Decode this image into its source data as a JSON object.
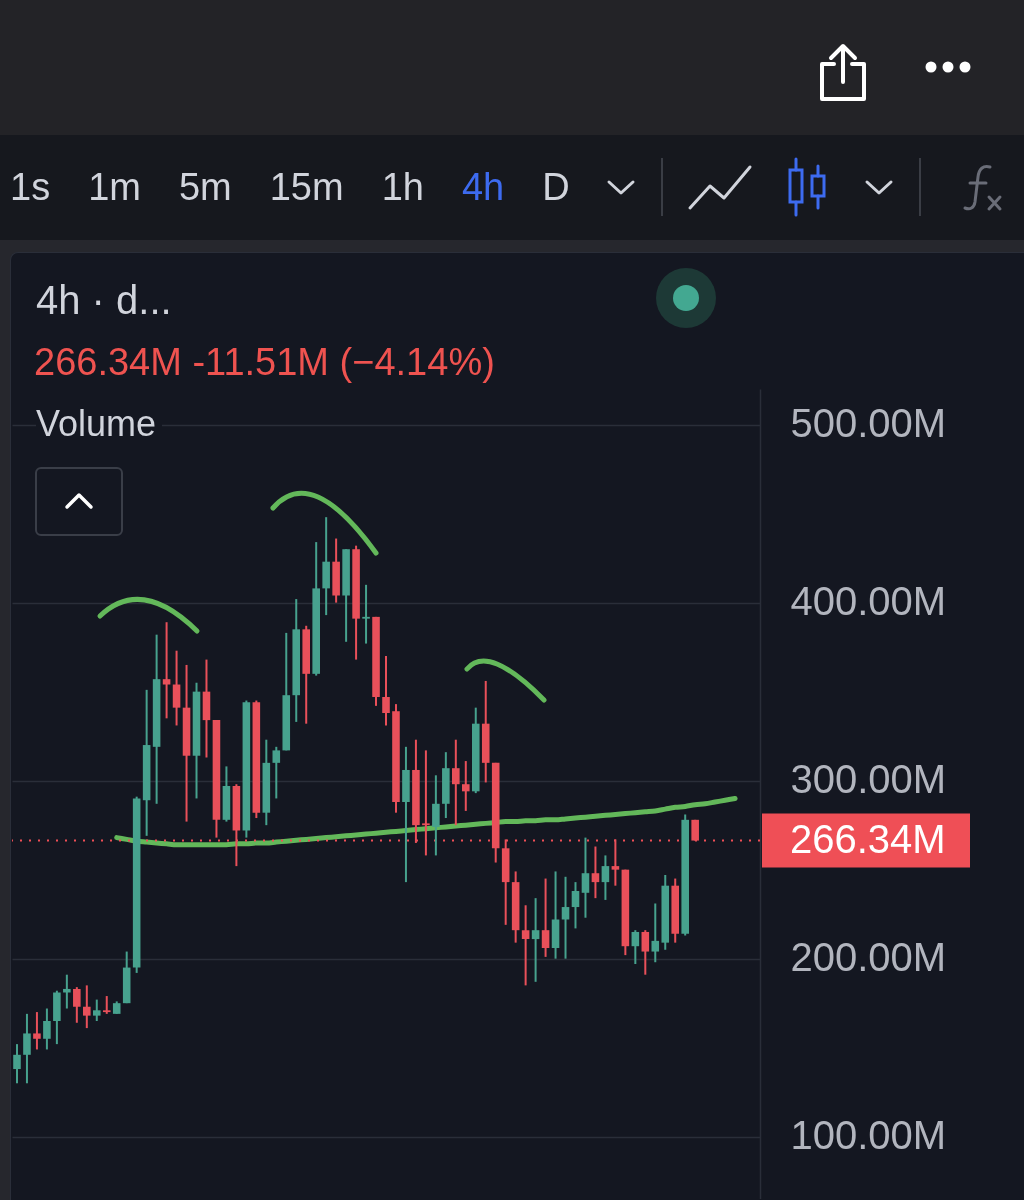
{
  "chart_data": {
    "type": "candlestick",
    "title": "4h · d...",
    "subtitle": "266.34M -11.51M (−4.14%)",
    "annotations": [
      "1s",
      "1m",
      "5m",
      "15m",
      "1h",
      "4h",
      "D",
      "Volume"
    ],
    "categories": [
      null,
      null,
      null,
      null,
      null,
      null,
      null,
      null,
      null,
      null,
      null,
      null,
      null,
      null,
      null,
      null,
      null,
      null,
      null,
      null,
      null,
      null,
      null,
      null,
      null,
      null,
      null,
      null,
      null,
      null,
      null,
      null,
      null,
      null,
      null,
      null,
      null,
      null,
      null,
      null,
      null,
      null,
      null,
      null,
      null,
      null,
      null,
      null,
      null,
      null,
      null,
      null,
      null,
      null,
      null,
      null,
      null,
      null,
      null,
      null,
      null,
      null,
      null,
      null,
      null,
      null,
      null,
      null,
      null,
      null,
      null,
      null,
      null,
      null,
      null
    ],
    "ohlc": [
      [
        138,
        152,
        130,
        146
      ],
      [
        146,
        169,
        130,
        158
      ],
      [
        158,
        170,
        149,
        155
      ],
      [
        155,
        172,
        149,
        165
      ],
      [
        165,
        182,
        152,
        181
      ],
      [
        181,
        191,
        172,
        183
      ],
      [
        183,
        184,
        164,
        173
      ],
      [
        173,
        185,
        161,
        168
      ],
      [
        168,
        177,
        165,
        171
      ],
      [
        171,
        179,
        169,
        170
      ],
      [
        169,
        176,
        169,
        175
      ],
      [
        175,
        204,
        175,
        195
      ],
      [
        195,
        291,
        192,
        290
      ],
      [
        289,
        351,
        269,
        320
      ],
      [
        319,
        382,
        287,
        357
      ],
      [
        357,
        389,
        335,
        354
      ],
      [
        354,
        373,
        331,
        341
      ],
      [
        341,
        365,
        277,
        314
      ],
      [
        314,
        355,
        290,
        350
      ],
      [
        350,
        368,
        313,
        334
      ],
      [
        334,
        334,
        268,
        278
      ],
      [
        278,
        308,
        277,
        297
      ],
      [
        297,
        298,
        252,
        272
      ],
      [
        272,
        345,
        268,
        344
      ],
      [
        344,
        345,
        279,
        282
      ],
      [
        282,
        323,
        275,
        310
      ],
      [
        310,
        319,
        290,
        317
      ],
      [
        317,
        383,
        317,
        348
      ],
      [
        348,
        402,
        333,
        385
      ],
      [
        385,
        387,
        332,
        360
      ],
      [
        360,
        434,
        359,
        408
      ],
      [
        408,
        448,
        393,
        423
      ],
      [
        423,
        436,
        400,
        404
      ],
      [
        404,
        430,
        378,
        430
      ],
      [
        430,
        432,
        368,
        391
      ],
      [
        391,
        410,
        377,
        392
      ],
      [
        392,
        392,
        342,
        347
      ],
      [
        347,
        370,
        331,
        338
      ],
      [
        339,
        343,
        282,
        288
      ],
      [
        288,
        319,
        243,
        306
      ],
      [
        306,
        323,
        265,
        275
      ],
      [
        276,
        317,
        258,
        275
      ],
      [
        274,
        303,
        258,
        287
      ],
      [
        287,
        316,
        279,
        307
      ],
      [
        307,
        323,
        275,
        298
      ],
      [
        298,
        311,
        283,
        294
      ],
      [
        294,
        341,
        293,
        332
      ],
      [
        332,
        356,
        299,
        310
      ],
      [
        310,
        310,
        254,
        262
      ],
      [
        262,
        267,
        219,
        243
      ],
      [
        243,
        249,
        209,
        216
      ],
      [
        216,
        230,
        185,
        211
      ],
      [
        211,
        234,
        187,
        216
      ],
      [
        216,
        245,
        201,
        206
      ],
      [
        206,
        249,
        200,
        222
      ],
      [
        222,
        246,
        200,
        229
      ],
      [
        229,
        243,
        217,
        238
      ],
      [
        237,
        268,
        223,
        248
      ],
      [
        248,
        263,
        234,
        243
      ],
      [
        243,
        258,
        233,
        252
      ],
      [
        252,
        267,
        241,
        250
      ],
      [
        250,
        250,
        202,
        207
      ],
      [
        207,
        216,
        197,
        215
      ],
      [
        215,
        216,
        191,
        204
      ],
      [
        204,
        231,
        198,
        210
      ],
      [
        209,
        247,
        205,
        241
      ],
      [
        241,
        245,
        209,
        214
      ],
      [
        214,
        281,
        213,
        278
      ],
      [
        278,
        278,
        266.34,
        266.34
      ],
      null,
      null,
      null,
      null,
      null,
      null
    ],
    "colors": [
      "#47a28e",
      "#47a28e",
      "#e9505a",
      "#47a28e",
      "#47a28e",
      "#47a28e",
      "#e9505a",
      "#e9505a",
      "#47a28e",
      "#e9505a",
      "#47a28e",
      "#47a28e",
      "#47a28e",
      "#47a28e",
      "#47a28e",
      "#e9505a",
      "#e9505a",
      "#e9505a",
      "#47a28e",
      "#e9505a",
      "#e9505a",
      "#47a28e",
      "#e9505a",
      "#47a28e",
      "#e9505a",
      "#47a28e",
      "#47a28e",
      "#47a28e",
      "#47a28e",
      "#e9505a",
      "#47a28e",
      "#47a28e",
      "#e9505a",
      "#47a28e",
      "#e9505a",
      "#47a28e",
      "#e9505a",
      "#e9505a",
      "#e9505a",
      "#47a28e",
      "#e9505a",
      "#e9505a",
      "#47a28e",
      "#47a28e",
      "#e9505a",
      "#e9505a",
      "#47a28e",
      "#e9505a",
      "#e9505a",
      "#e9505a",
      "#e9505a",
      "#e9505a",
      "#47a28e",
      "#e9505a",
      "#47a28e",
      "#47a28e",
      "#47a28e",
      "#47a28e",
      "#e9505a",
      "#47a28e",
      "#e9505a",
      "#e9505a",
      "#47a28e",
      "#e9505a",
      "#47a28e",
      "#47a28e",
      "#e9505a",
      "#47a28e",
      "#e9505a",
      null,
      null,
      null,
      null,
      null,
      null
    ],
    "series": [
      {
        "type": "line",
        "color": "#63b85a",
        "values": [
          null,
          null,
          null,
          null,
          null,
          null,
          null,
          null,
          null,
          null,
          268,
          267,
          266,
          265.5,
          265,
          264.5,
          264,
          264,
          264,
          264,
          264,
          264,
          264.5,
          264.5,
          265,
          265,
          265.5,
          266,
          266.5,
          267,
          267.5,
          268,
          268.5,
          269,
          269.5,
          270,
          270.5,
          271,
          271.5,
          272,
          272.5,
          273,
          273.5,
          274,
          274.5,
          275,
          275.5,
          276,
          276.5,
          277,
          277,
          277.5,
          277.5,
          278,
          278,
          278.5,
          279,
          279.5,
          280,
          280.5,
          281,
          281.5,
          282,
          282.5,
          283,
          284,
          285,
          285.5,
          286.5,
          287,
          288,
          289,
          290,
          null,
          null
        ]
      }
    ],
    "ylim": [
      65,
      520
    ],
    "yticks": [
      {
        "value": 100,
        "label": "100.00M"
      },
      {
        "value": 200,
        "label": "200.00M"
      },
      {
        "value": 300,
        "label": "300.00M"
      },
      {
        "value": 400,
        "label": "400.00M"
      },
      {
        "value": 500,
        "label": "500.00M"
      }
    ],
    "grid": "y",
    "tick_labels": "y",
    "ref_lines": [
      {
        "axis": "y",
        "value": 266.34,
        "label": "266.34M",
        "color": "#ef4f56",
        "line_style": "dotted"
      }
    ]
  }
}
